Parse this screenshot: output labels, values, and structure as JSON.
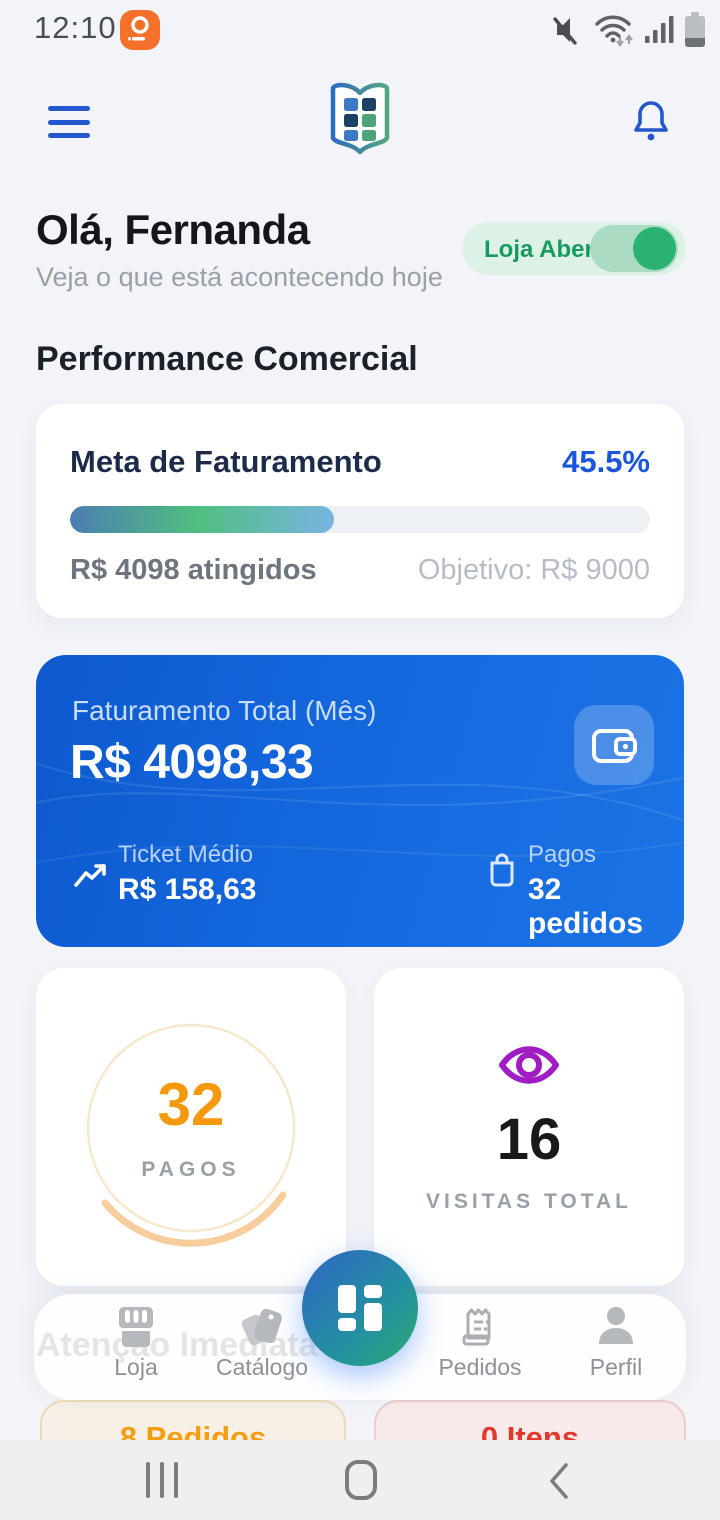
{
  "status_bar": {
    "time": "12:10",
    "icons": [
      "notification-app-badge",
      "volume-muted",
      "wifi",
      "signal-strength",
      "battery"
    ]
  },
  "header": {
    "logo": "open-book-grid-logo",
    "menu": "hamburger-menu",
    "notifications": "bell"
  },
  "greeting": {
    "title": "Olá, Fernanda",
    "subtitle": "Veja o que está acontecendo hoje"
  },
  "store_toggle": {
    "label": "Loja Aberta",
    "state": "on",
    "on_color": "#2bb171"
  },
  "sections": {
    "performance": "Performance Comercial",
    "attention": "Atenção Imediata"
  },
  "goal_card": {
    "title": "Meta de Faturamento",
    "percent": "45.5%",
    "progress_pct": 45.5,
    "achieved": "R$ 4098 atingidos",
    "objective": "Objetivo: R$ 9000"
  },
  "revenue_card": {
    "label": "Faturamento Total (Mês)",
    "value": "R$ 4098,33",
    "ticket_label": "Ticket Médio",
    "ticket_value": "R$ 158,63",
    "paid_label": "Pagos",
    "paid_value": "32 pedidos",
    "bg_color": "#1165dc"
  },
  "stats": {
    "paid": {
      "value": "32",
      "label": "PAGOS",
      "accent": "#f6980b"
    },
    "visits": {
      "value": "16",
      "label": "VISITAS TOTAL",
      "accent": "#a21cc4"
    }
  },
  "attention": {
    "cards": [
      {
        "text": "8 Pedidos",
        "accent": "#f49d0d"
      },
      {
        "text": "0 Itens",
        "accent": "#e2382e"
      }
    ]
  },
  "bottom_nav": {
    "items": [
      {
        "label": "Loja"
      },
      {
        "label": "Catálogo"
      },
      {
        "label": "Pedidos"
      },
      {
        "label": "Perfil"
      }
    ],
    "fab": "dashboard-grid"
  },
  "system_nav": [
    "recents",
    "home",
    "back"
  ]
}
